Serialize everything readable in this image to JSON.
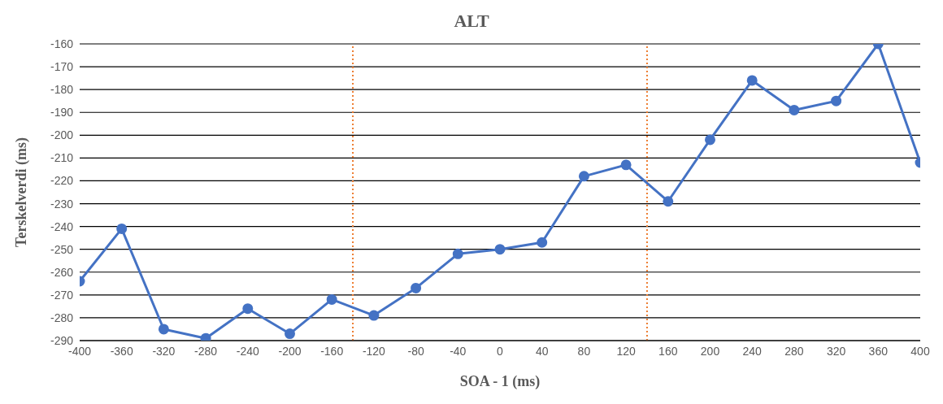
{
  "chart_data": {
    "type": "line",
    "title": "ALT",
    "xlabel": "SOA - 1 (ms)",
    "ylabel": "Terskelverdi (ms)",
    "x": [
      -400,
      -360,
      -320,
      -280,
      -240,
      -200,
      -160,
      -120,
      -80,
      -40,
      0,
      40,
      80,
      120,
      160,
      200,
      240,
      280,
      320,
      360,
      400
    ],
    "series": [
      {
        "color": "#4472c4",
        "values": [
          -264,
          -241,
          -285,
          -289,
          -276,
          -287,
          -272,
          -279,
          -267,
          -252,
          -250,
          -247,
          -218,
          -213,
          -229,
          -202,
          -176,
          -189,
          -185,
          -160,
          -212
        ]
      }
    ],
    "xlim": [
      -400,
      400
    ],
    "xticks": [
      -400,
      -360,
      -320,
      -280,
      -240,
      -200,
      -160,
      -120,
      -80,
      -40,
      0,
      40,
      80,
      120,
      160,
      200,
      240,
      280,
      320,
      360,
      400
    ],
    "ylim": [
      -290,
      -160
    ],
    "yticks": [
      -290,
      -280,
      -270,
      -260,
      -250,
      -240,
      -230,
      -220,
      -210,
      -200,
      -190,
      -180,
      -170,
      -160
    ],
    "ref_lines": [
      {
        "axis": "x",
        "value": -140,
        "color": "#ed7d31",
        "line_style": "dotted"
      },
      {
        "axis": "x",
        "value": 140,
        "color": "#ed7d31",
        "line_style": "dotted"
      }
    ],
    "grid": "y",
    "marker": "circle",
    "line_style": "solid",
    "legend": false
  }
}
